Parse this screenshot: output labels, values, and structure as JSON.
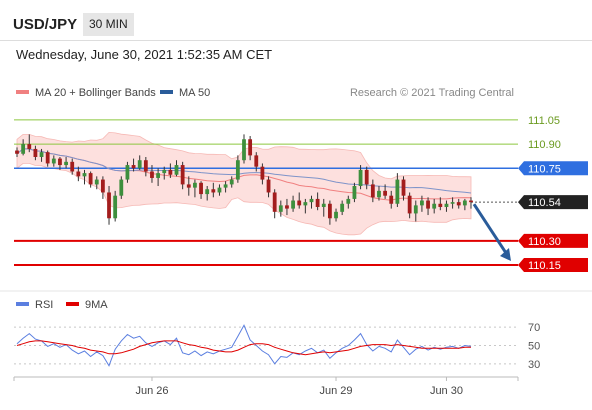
{
  "header": {
    "symbol": "USD/JPY",
    "interval": "30 MIN"
  },
  "timestamp": "Wednesday, June 30, 2021 1:52:35 AM CET",
  "legend": {
    "ma20": {
      "label": "MA 20 + Bollinger Bands",
      "color": "#f08080"
    },
    "ma50": {
      "label": "MA 50",
      "color": "#2a5c9a"
    }
  },
  "credit": "Research © 2021 Trading Central",
  "rsi_legend": {
    "rsi": {
      "label": "RSI",
      "color": "#5b7fe0"
    },
    "ma9": {
      "label": "9MA",
      "color": "#e00000"
    }
  },
  "chart_data": [
    {
      "type": "candlestick",
      "title": "USD/JPY",
      "ylim": [
        110.02,
        111.13
      ],
      "levels": [
        {
          "value": 111.05,
          "label": "111.05",
          "kind": "resistance",
          "color": "#8cc63f"
        },
        {
          "value": 110.9,
          "label": "110.90",
          "kind": "resistance",
          "color": "#8cc63f"
        },
        {
          "value": 110.75,
          "label": "110.75",
          "kind": "pivot",
          "color": "#2f6fe0"
        },
        {
          "value": 110.54,
          "label": "110.54",
          "kind": "last",
          "color": "#222222"
        },
        {
          "value": 110.3,
          "label": "110.30",
          "kind": "support",
          "color": "#e00000"
        },
        {
          "value": 110.15,
          "label": "110.15",
          "kind": "support",
          "color": "#e00000"
        }
      ],
      "projection": {
        "from": 110.54,
        "to": 110.15,
        "color": "#2a5c9a"
      },
      "x_ticks": [
        "Jun 26",
        "Jun 29",
        "Jun 30"
      ],
      "ohlc": [
        [
          110.86,
          110.88,
          110.82,
          110.84
        ],
        [
          110.84,
          110.93,
          110.83,
          110.9
        ],
        [
          110.9,
          110.96,
          110.85,
          110.87
        ],
        [
          110.87,
          110.89,
          110.8,
          110.82
        ],
        [
          110.82,
          110.87,
          110.79,
          110.85
        ],
        [
          110.85,
          110.86,
          110.76,
          110.78
        ],
        [
          110.78,
          110.83,
          110.76,
          110.81
        ],
        [
          110.81,
          110.82,
          110.74,
          110.77
        ],
        [
          110.77,
          110.82,
          110.75,
          110.79
        ],
        [
          110.79,
          110.81,
          110.71,
          110.73
        ],
        [
          110.73,
          110.76,
          110.67,
          110.7
        ],
        [
          110.7,
          110.74,
          110.65,
          110.72
        ],
        [
          110.72,
          110.73,
          110.63,
          110.65
        ],
        [
          110.65,
          110.7,
          110.62,
          110.68
        ],
        [
          110.68,
          110.7,
          110.56,
          110.6
        ],
        [
          110.6,
          110.64,
          110.4,
          110.44
        ],
        [
          110.44,
          110.61,
          110.42,
          110.58
        ],
        [
          110.58,
          110.7,
          110.56,
          110.68
        ],
        [
          110.68,
          110.79,
          110.66,
          110.77
        ],
        [
          110.77,
          110.81,
          110.73,
          110.75
        ],
        [
          110.75,
          110.83,
          110.74,
          110.8
        ],
        [
          110.8,
          110.82,
          110.7,
          110.73
        ],
        [
          110.73,
          110.77,
          110.66,
          110.69
        ],
        [
          110.69,
          110.75,
          110.64,
          110.72
        ],
        [
          110.72,
          110.76,
          110.68,
          110.74
        ],
        [
          110.74,
          110.78,
          110.69,
          110.71
        ],
        [
          110.71,
          110.8,
          110.7,
          110.77
        ],
        [
          110.77,
          110.79,
          110.62,
          110.65
        ],
        [
          110.65,
          110.7,
          110.58,
          110.63
        ],
        [
          110.63,
          110.68,
          110.57,
          110.66
        ],
        [
          110.66,
          110.67,
          110.56,
          110.59
        ],
        [
          110.59,
          110.64,
          110.55,
          110.62
        ],
        [
          110.62,
          110.66,
          110.57,
          110.6
        ],
        [
          110.6,
          110.65,
          110.58,
          110.63
        ],
        [
          110.63,
          110.67,
          110.6,
          110.65
        ],
        [
          110.65,
          110.7,
          110.63,
          110.68
        ],
        [
          110.68,
          110.83,
          110.66,
          110.8
        ],
        [
          110.8,
          110.96,
          110.78,
          110.93
        ],
        [
          110.93,
          110.95,
          110.8,
          110.83
        ],
        [
          110.83,
          110.85,
          110.73,
          110.76
        ],
        [
          110.76,
          110.78,
          110.65,
          110.68
        ],
        [
          110.68,
          110.7,
          110.57,
          110.6
        ],
        [
          110.6,
          110.62,
          110.44,
          110.48
        ],
        [
          110.48,
          110.55,
          110.45,
          110.52
        ],
        [
          110.52,
          110.56,
          110.46,
          110.5
        ],
        [
          110.5,
          110.58,
          110.48,
          110.55
        ],
        [
          110.55,
          110.6,
          110.5,
          110.52
        ],
        [
          110.52,
          110.56,
          110.47,
          110.54
        ],
        [
          110.54,
          110.58,
          110.5,
          110.56
        ],
        [
          110.56,
          110.6,
          110.49,
          110.51
        ],
        [
          110.51,
          110.56,
          110.45,
          110.53
        ],
        [
          110.53,
          110.55,
          110.4,
          110.44
        ],
        [
          110.44,
          110.5,
          110.42,
          110.48
        ],
        [
          110.48,
          110.55,
          110.46,
          110.53
        ],
        [
          110.53,
          110.58,
          110.5,
          110.56
        ],
        [
          110.56,
          110.66,
          110.54,
          110.64
        ],
        [
          110.64,
          110.77,
          110.62,
          110.74
        ],
        [
          110.74,
          110.76,
          110.62,
          110.65
        ],
        [
          110.65,
          110.68,
          110.54,
          110.57
        ],
        [
          110.57,
          110.64,
          110.55,
          110.61
        ],
        [
          110.61,
          110.65,
          110.56,
          110.58
        ],
        [
          110.58,
          110.61,
          110.5,
          110.53
        ],
        [
          110.53,
          110.72,
          110.51,
          110.68
        ],
        [
          110.68,
          110.7,
          110.55,
          110.58
        ],
        [
          110.58,
          110.6,
          110.44,
          110.47
        ],
        [
          110.47,
          110.55,
          110.42,
          110.52
        ],
        [
          110.52,
          110.58,
          110.48,
          110.55
        ],
        [
          110.55,
          110.57,
          110.46,
          110.5
        ],
        [
          110.5,
          110.56,
          110.47,
          110.53
        ],
        [
          110.53,
          110.57,
          110.49,
          110.51
        ],
        [
          110.51,
          110.55,
          110.48,
          110.53
        ],
        [
          110.53,
          110.57,
          110.5,
          110.54
        ],
        [
          110.54,
          110.56,
          110.5,
          110.52
        ],
        [
          110.52,
          110.56,
          110.49,
          110.55
        ],
        [
          110.55,
          110.57,
          110.5,
          110.54
        ]
      ]
    },
    {
      "type": "line",
      "title": "RSI",
      "ylim": [
        20,
        80
      ],
      "y_ticks": [
        70,
        50,
        30
      ],
      "x_ticks": [
        "Jun 26",
        "Jun 29",
        "Jun 30"
      ],
      "series": [
        {
          "name": "RSI",
          "color": "#5b7fe0",
          "values": [
            52,
            58,
            63,
            57,
            55,
            49,
            52,
            48,
            51,
            45,
            41,
            44,
            38,
            43,
            39,
            28,
            46,
            55,
            62,
            58,
            60,
            53,
            49,
            53,
            55,
            51,
            58,
            42,
            40,
            44,
            39,
            43,
            41,
            44,
            46,
            48,
            60,
            72,
            56,
            50,
            44,
            40,
            30,
            38,
            37,
            42,
            40,
            44,
            47,
            42,
            45,
            36,
            42,
            47,
            50,
            56,
            63,
            51,
            44,
            49,
            47,
            43,
            56,
            48,
            40,
            46,
            49,
            45,
            48,
            46,
            48,
            49,
            47,
            50,
            49
          ]
        },
        {
          "name": "9MA",
          "color": "#e00000",
          "values": [
            50,
            52,
            54,
            55,
            55,
            54,
            53,
            52,
            51,
            50,
            48,
            47,
            45,
            44,
            43,
            41,
            41,
            42,
            44,
            46,
            49,
            51,
            53,
            54,
            55,
            55,
            55,
            53,
            51,
            50,
            48,
            47,
            45,
            44,
            43,
            43,
            45,
            48,
            51,
            52,
            52,
            51,
            48,
            46,
            44,
            42,
            41,
            40,
            41,
            42,
            43,
            42,
            43,
            44,
            45,
            47,
            49,
            50,
            51,
            51,
            51,
            50,
            51,
            50,
            49,
            48,
            47,
            47,
            47,
            47,
            47,
            47,
            47,
            48,
            48
          ]
        }
      ]
    }
  ]
}
